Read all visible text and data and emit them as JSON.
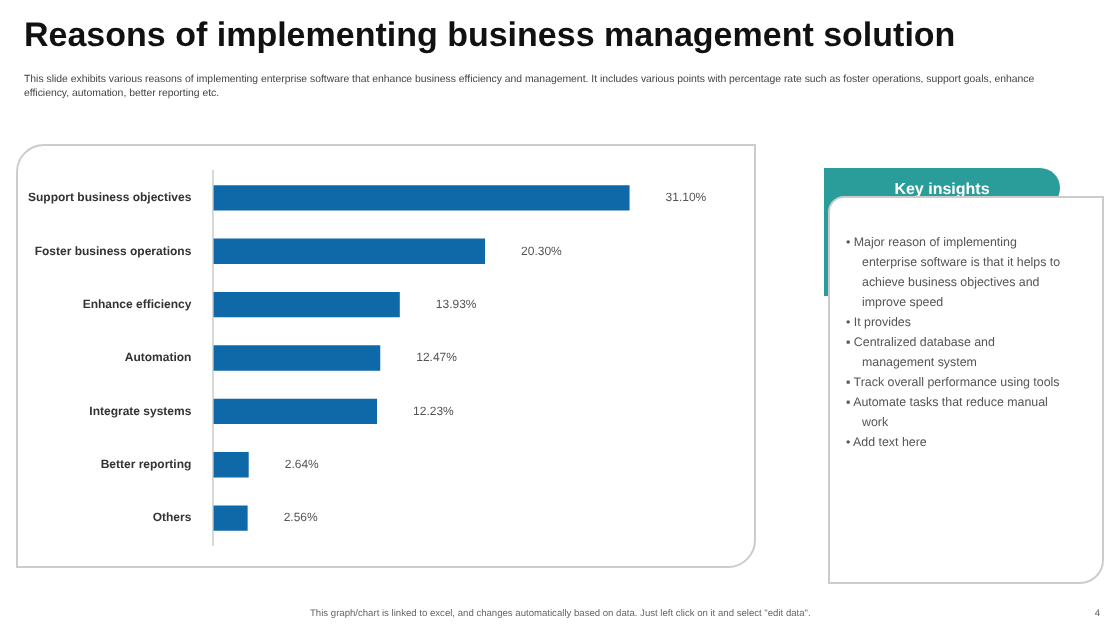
{
  "chart_data": [
    {
      "type": "bar",
      "orientation": "horizontal",
      "title": "Reasons of implementing business management solution",
      "subtitle": "This slide exhibits various reasons of implementing enterprise software that enhance business efficiency and management. It includes various points with percentage rate such as foster operations, support goals, enhance efficiency, automation, better reporting etc.",
      "categories": [
        "Support business objectives",
        "Foster business operations",
        "Enhance efficiency",
        "Automation",
        "Integrate systems",
        "Better reporting",
        "Others"
      ],
      "values": [
        31.1,
        20.3,
        13.93,
        12.47,
        12.23,
        2.64,
        2.56
      ],
      "value_labels": [
        "31.10%",
        "20.30%",
        "13.93%",
        "12.47%",
        "12.23%",
        "2.64%",
        "2.56%"
      ],
      "color": "#0f69a8",
      "annotations": [
        "This graph/chart is linked to excel, and changes automatically based on data. Just left click on it and select \"edit data\".",
        "4"
      ]
    },
    {
      "type": "other",
      "title": "Key insights",
      "color": "#2a9d9a",
      "annotations": [
        "• Major reason of implementing enterprise software is that it helps to achieve business objectives and improve speed",
        "• It provides",
        "▪ Centralized database and management system",
        "▪ Track overall performance using tools",
        "▪ Automate tasks that reduce manual work",
        "• Add text here"
      ]
    }
  ]
}
